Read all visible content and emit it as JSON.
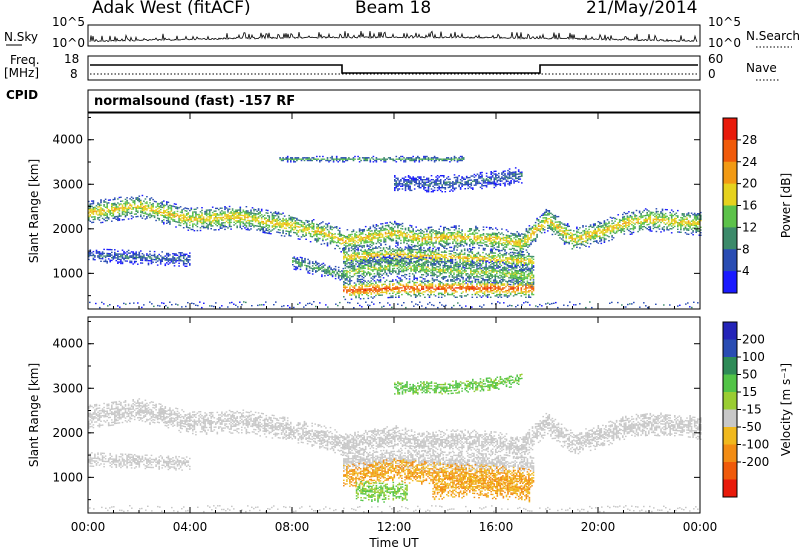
{
  "header": {
    "station": "Adak West (fitACF)",
    "beam": "Beam 18",
    "date": "21/May/2014"
  },
  "params": {
    "nsky_label": "N.Sky",
    "nsky_ticks": [
      "10^5",
      "10^0"
    ],
    "nsearch_label": "N.Search",
    "nsearch_ticks": [
      "10^5",
      "10^0"
    ],
    "freq_label": "Freq.",
    "freq_unit": "[MHz]",
    "freq_ticks": [
      "18",
      "8"
    ],
    "nave_label": "Nave",
    "nave_ticks": [
      "60",
      "0"
    ],
    "cpid_label": "CPID",
    "cpid_text": "normalsound (fast) -157 RF"
  },
  "chart_data": [
    {
      "type": "heatmap",
      "panel": "power",
      "ylabel": "Slant Range [km]",
      "ylim": [
        200,
        4600
      ],
      "yticks": [
        1000,
        2000,
        3000,
        4000
      ],
      "xlim": [
        0,
        24
      ],
      "colorbar_label": "Power [dB]",
      "colorbar_ticks": [
        4,
        8,
        12,
        16,
        20,
        24,
        28
      ],
      "colorbar_range": [
        0,
        32
      ],
      "colors": [
        "#1a1aff",
        "#2a4db3",
        "#3c8a6a",
        "#5cc24a",
        "#e6d21e",
        "#f29a14",
        "#f05a0a",
        "#e81a0a"
      ],
      "features": [
        {
          "t": [
            0,
            2,
            4,
            6,
            8,
            9.5,
            10,
            11,
            12,
            13,
            14,
            15,
            16,
            17,
            18,
            19,
            20,
            21,
            22,
            24
          ],
          "r": [
            2350,
            2500,
            2200,
            2250,
            2050,
            1850,
            1700,
            1800,
            1900,
            1750,
            1800,
            1800,
            1750,
            1650,
            2200,
            1750,
            1900,
            2100,
            2200,
            2100
          ],
          "power": 20,
          "width": 260
        },
        {
          "t": [
            0,
            2,
            4
          ],
          "r": [
            1400,
            1350,
            1300
          ],
          "power": 8,
          "width": 160
        },
        {
          "t": [
            8,
            9,
            10
          ],
          "r": [
            1250,
            1100,
            950
          ],
          "power": 12,
          "width": 160
        },
        {
          "t": [
            10,
            12,
            14,
            16,
            17.5
          ],
          "r": [
            1350,
            1400,
            1350,
            1300,
            1250
          ],
          "power": 20,
          "width": 220
        },
        {
          "t": [
            10,
            12,
            14,
            16,
            17.5
          ],
          "r": [
            1000,
            1150,
            1050,
            1000,
            900
          ],
          "power": 16,
          "width": 260
        },
        {
          "t": [
            10,
            12,
            14,
            16,
            17.5
          ],
          "r": [
            600,
            650,
            650,
            650,
            650
          ],
          "power": 28,
          "width": 200
        },
        {
          "t": [
            12,
            14,
            16,
            17
          ],
          "r": [
            3000,
            3000,
            3100,
            3200
          ],
          "power": 8,
          "width": 180
        },
        {
          "t": [
            7.5,
            14.8
          ],
          "r": [
            3550,
            3550
          ],
          "power": 12,
          "width": 60
        }
      ]
    },
    {
      "type": "heatmap",
      "panel": "velocity",
      "ylabel": "Slant Range [km]",
      "ylim": [
        200,
        4600
      ],
      "yticks": [
        1000,
        2000,
        3000,
        4000
      ],
      "xlim": [
        0,
        24
      ],
      "xticks": [
        "00:00",
        "04:00",
        "08:00",
        "12:00",
        "16:00",
        "20:00",
        "00:00"
      ],
      "xlabel": "Time UT",
      "colorbar_label": "Velocity [m s⁻¹]",
      "colorbar_ticks": [
        200,
        100,
        50,
        15,
        -15,
        -50,
        -100,
        -200
      ],
      "colors": [
        "#2424b8",
        "#2a4db3",
        "#2e8b57",
        "#52c447",
        "#9acd32",
        "#c8c8c8",
        "#f0b81e",
        "#f28c14",
        "#f05a0a",
        "#e81a0a"
      ],
      "features": [
        {
          "t": [
            0,
            2,
            4,
            6,
            8,
            9.5,
            10,
            11,
            12,
            13,
            14,
            15,
            16,
            17,
            18,
            19,
            20,
            21,
            22,
            24
          ],
          "r": [
            2350,
            2500,
            2200,
            2250,
            2050,
            1850,
            1700,
            1800,
            1900,
            1750,
            1800,
            1800,
            1750,
            1650,
            2200,
            1750,
            1900,
            2100,
            2200,
            2100
          ],
          "velocity": 0,
          "width": 260
        },
        {
          "t": [
            0,
            2,
            4
          ],
          "r": [
            1400,
            1350,
            1300
          ],
          "velocity": 0,
          "width": 160
        },
        {
          "t": [
            10,
            12,
            14,
            16,
            17.5
          ],
          "r": [
            1350,
            1400,
            1350,
            1300,
            1250
          ],
          "velocity": 0,
          "width": 220
        },
        {
          "t": [
            10,
            12,
            14,
            16,
            17.5
          ],
          "r": [
            1000,
            1150,
            1050,
            1000,
            900
          ],
          "velocity": -40,
          "width": 260
        },
        {
          "t": [
            10.5,
            11.5,
            12.5
          ],
          "r": [
            700,
            650,
            700
          ],
          "velocity": 25,
          "width": 220
        },
        {
          "t": [
            13.5,
            15,
            16.5,
            17.3
          ],
          "r": [
            750,
            800,
            750,
            700
          ],
          "velocity": -40,
          "width": 260
        },
        {
          "t": [
            12,
            14,
            16,
            17
          ],
          "r": [
            3000,
            3000,
            3100,
            3200
          ],
          "velocity": 30,
          "width": 140
        }
      ]
    }
  ]
}
